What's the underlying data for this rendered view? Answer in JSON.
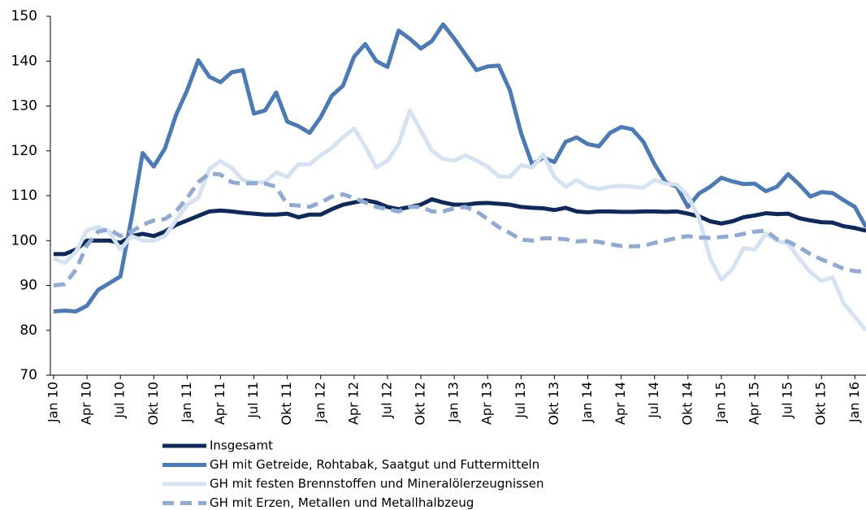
{
  "chart_data": {
    "type": "line",
    "categories": [
      "Jan 10",
      null,
      null,
      "Apr 10",
      null,
      null,
      "Jul 10",
      null,
      null,
      "Okt 10",
      null,
      null,
      "Jan 11",
      null,
      null,
      "Apr 11",
      null,
      null,
      "Jul 11",
      null,
      null,
      "Okt 11",
      null,
      null,
      "Jan 12",
      null,
      null,
      "Apr 12",
      null,
      null,
      "Jul 12",
      null,
      null,
      "Okt 12",
      null,
      null,
      "Jan 13",
      null,
      null,
      "Apr 13",
      null,
      null,
      "Jul 13",
      null,
      null,
      "Okt 13",
      null,
      null,
      "Jan 14",
      null,
      null,
      "Apr 14",
      null,
      null,
      "Jul 14",
      null,
      null,
      "Okt 14",
      null,
      null,
      "Jan 15",
      null,
      null,
      "Apr 15",
      null,
      null,
      "Jul 15",
      null,
      null,
      "Okt 15",
      null,
      null,
      "Jan 16",
      null
    ],
    "ylim": [
      70,
      150
    ],
    "yticks": [
      70,
      80,
      90,
      100,
      110,
      120,
      130,
      140,
      150
    ],
    "grid": false,
    "series": [
      {
        "name": "Insgesamt",
        "color": "#0e2a5c",
        "style": "solid",
        "values": [
          97,
          97,
          98,
          100,
          100,
          100,
          99.5,
          101,
          101.5,
          101,
          102,
          103.5,
          104.5,
          105.5,
          106.5,
          106.7,
          106.5,
          106.2,
          106,
          105.8,
          105.8,
          106,
          105.2,
          105.8,
          105.8,
          107,
          108,
          108.5,
          109,
          108.5,
          107.5,
          107,
          107.5,
          108,
          109.2,
          108.5,
          108,
          108,
          108.3,
          108.4,
          108.2,
          108,
          107.5,
          107.3,
          107.2,
          106.8,
          107.3,
          106.5,
          106.3,
          106.5,
          106.5,
          106.4,
          106.4,
          106.5,
          106.5,
          106.4,
          106.5,
          106,
          105.4,
          104.3,
          103.8,
          104.3,
          105.2,
          105.6,
          106.1,
          105.9,
          106,
          105,
          104.5,
          104.1,
          104,
          103.2,
          102.8,
          102.2
        ]
      },
      {
        "name": "GH mit Getreide, Rohtabak, Saatgut und Futtermitteln",
        "color": "#4a7ab8",
        "style": "solid",
        "values": [
          84.2,
          84.4,
          84.2,
          85.5,
          89,
          90.5,
          92,
          105,
          119.5,
          116.5,
          120.5,
          128,
          133.5,
          140.2,
          136.5,
          135.3,
          137.5,
          138,
          128.3,
          129,
          133,
          126.5,
          125.5,
          124,
          127.5,
          132.3,
          134.5,
          141,
          143.8,
          140,
          138.7,
          146.8,
          145,
          142.8,
          144.5,
          148.2,
          145,
          141.5,
          138,
          138.8,
          139,
          133.5,
          124,
          117,
          118.5,
          117.5,
          122,
          123,
          121.5,
          121,
          124,
          125.3,
          124.8,
          122,
          117,
          113,
          112,
          107.5,
          110.5,
          112,
          114,
          113.2,
          112.6,
          112.7,
          111,
          112,
          114.8,
          112.5,
          109.8,
          110.8,
          110.6,
          109,
          107.5,
          103
        ]
      },
      {
        "name": "GH mit festen Brennstoffen und Mineralölerzeugnissen",
        "color": "#d5e2f2",
        "style": "solid",
        "values": [
          96,
          95,
          97.5,
          102.3,
          103,
          102,
          98,
          101,
          100,
          100,
          101,
          104.5,
          108,
          109.5,
          116,
          117.7,
          116.2,
          113.5,
          113,
          113,
          115.2,
          114.2,
          117,
          117,
          119,
          120.7,
          123,
          125,
          121,
          116.3,
          117.8,
          121.5,
          129,
          124.5,
          120,
          118.2,
          117.8,
          119,
          117.8,
          116.5,
          114.3,
          114.2,
          116.8,
          116.3,
          119.2,
          114.2,
          112,
          113.5,
          112,
          111.5,
          112,
          112.2,
          112,
          111.8,
          113.5,
          112.7,
          112.5,
          110,
          105,
          96,
          91.3,
          93.7,
          98.3,
          98,
          101.5,
          100,
          99.3,
          96,
          93,
          91,
          91.8,
          86,
          83,
          80
        ]
      },
      {
        "name": "GH mit Erzen, Metallen und Metallhalbzeug",
        "color": "#8faad4",
        "style": "dashed",
        "values": [
          90,
          90.3,
          93.5,
          99,
          102,
          102.5,
          101,
          102,
          103.5,
          104.5,
          104.8,
          106.5,
          109.5,
          113,
          115,
          114.7,
          113,
          112.7,
          112.8,
          112.7,
          112,
          108,
          107.8,
          107.5,
          108.5,
          109.8,
          110.3,
          109.5,
          108.5,
          107.5,
          107,
          106.5,
          107.5,
          107.5,
          106.5,
          106.5,
          107.2,
          107.5,
          106.5,
          104.8,
          103,
          101.7,
          100.2,
          100,
          100.5,
          100.5,
          100.3,
          99.8,
          100,
          99.7,
          99.2,
          98.8,
          98.7,
          98.8,
          99.5,
          100,
          100.6,
          101,
          100.7,
          100.6,
          100.8,
          101,
          101.5,
          102,
          102.2,
          100.3,
          99.8,
          98.5,
          97,
          95.8,
          94.8,
          93.7,
          93.2,
          93
        ]
      }
    ]
  }
}
